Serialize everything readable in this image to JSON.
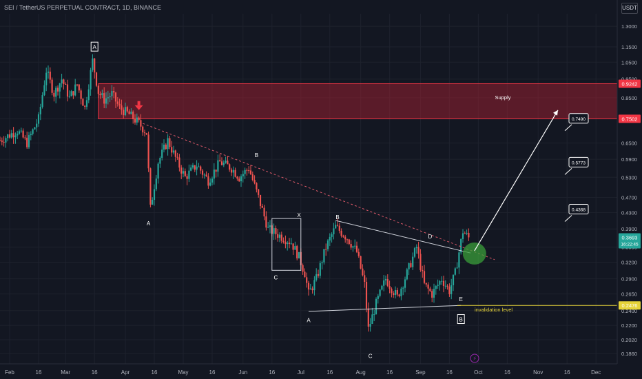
{
  "header": {
    "symbol_title": "SEI / TetherUS PERPETUAL CONTRACT, 1D, BINANCE",
    "currency": "USDT"
  },
  "colors": {
    "background": "#131722",
    "bull": "#26a69a",
    "bear": "#ef5350",
    "supply_fill": "rgba(178,34,52,0.45)",
    "supply_border": "#f23645",
    "invalidation_line": "#e6d33a",
    "target_circle": "#3a9d3a",
    "dashed_trend": "#e05a6a"
  },
  "chart_data": {
    "type": "candlestick",
    "x_axis": {
      "tick_labels": [
        "Feb",
        "16",
        "Mar",
        "16",
        "Apr",
        "16",
        "May",
        "16",
        "Jun",
        "16",
        "Jul",
        "16",
        "Aug",
        "16",
        "Sep",
        "16",
        "Oct",
        "16",
        "Nov",
        "16",
        "Dec"
      ],
      "range": [
        "2024-01-27",
        "2024-12-12"
      ]
    },
    "y_axis": {
      "scale": "log",
      "tick_labels": [
        "1.3000",
        "1.1500",
        "1.0500",
        "0.9500",
        "0.8500",
        "0.7500",
        "0.6500",
        "0.5900",
        "0.5300",
        "0.4700",
        "0.4300",
        "0.3900",
        "0.3500",
        "0.3200",
        "0.2900",
        "0.2650",
        "0.2400",
        "0.2200",
        "0.2020",
        "0.1860"
      ],
      "range": [
        0.175,
        1.4
      ]
    },
    "price_path": [
      [
        "2024-01-27",
        0.66
      ],
      [
        "2024-02-05",
        0.7
      ],
      [
        "2024-02-10",
        0.65
      ],
      [
        "2024-02-16",
        0.75
      ],
      [
        "2024-02-20",
        1.0
      ],
      [
        "2024-02-24",
        0.87
      ],
      [
        "2024-02-28",
        0.95
      ],
      [
        "2024-03-03",
        0.85
      ],
      [
        "2024-03-07",
        0.92
      ],
      [
        "2024-03-11",
        0.8
      ],
      [
        "2024-03-15",
        1.06
      ],
      [
        "2024-03-18",
        0.88
      ],
      [
        "2024-03-21",
        0.84
      ],
      [
        "2024-03-25",
        0.87
      ],
      [
        "2024-03-29",
        0.8
      ],
      [
        "2024-04-03",
        0.77
      ],
      [
        "2024-04-08",
        0.73
      ],
      [
        "2024-04-12",
        0.69
      ],
      [
        "2024-04-14",
        0.44
      ],
      [
        "2024-04-18",
        0.58
      ],
      [
        "2024-04-23",
        0.66
      ],
      [
        "2024-04-28",
        0.58
      ],
      [
        "2024-05-02",
        0.53
      ],
      [
        "2024-05-08",
        0.57
      ],
      [
        "2024-05-14",
        0.52
      ],
      [
        "2024-05-20",
        0.58
      ],
      [
        "2024-05-26",
        0.56
      ],
      [
        "2024-05-30",
        0.53
      ],
      [
        "2024-06-04",
        0.56
      ],
      [
        "2024-06-09",
        0.47
      ],
      [
        "2024-06-14",
        0.39
      ],
      [
        "2024-06-18",
        0.38
      ],
      [
        "2024-06-22",
        0.37
      ],
      [
        "2024-06-26",
        0.36
      ],
      [
        "2024-06-30",
        0.33
      ],
      [
        "2024-07-03",
        0.3
      ],
      [
        "2024-07-05",
        0.265
      ],
      [
        "2024-07-09",
        0.29
      ],
      [
        "2024-07-14",
        0.35
      ],
      [
        "2024-07-19",
        0.395
      ],
      [
        "2024-07-25",
        0.37
      ],
      [
        "2024-07-30",
        0.34
      ],
      [
        "2024-08-03",
        0.28
      ],
      [
        "2024-08-05",
        0.215
      ],
      [
        "2024-08-09",
        0.25
      ],
      [
        "2024-08-14",
        0.29
      ],
      [
        "2024-08-20",
        0.26
      ],
      [
        "2024-08-25",
        0.3
      ],
      [
        "2024-08-30",
        0.35
      ],
      [
        "2024-09-03",
        0.28
      ],
      [
        "2024-09-07",
        0.265
      ],
      [
        "2024-09-12",
        0.29
      ],
      [
        "2024-09-16",
        0.27
      ],
      [
        "2024-09-19",
        0.3
      ],
      [
        "2024-09-23",
        0.385
      ],
      [
        "2024-09-26",
        0.37
      ]
    ],
    "last_price": "0.3693",
    "countdown": "16:22:45",
    "price_levels": [
      {
        "label": "0.9242",
        "value": 0.9242,
        "color": "#f23645"
      },
      {
        "label": "0.7502",
        "value": 0.7502,
        "color": "#f23645"
      },
      {
        "label": "0.2476",
        "value": 0.2476,
        "color": "#e6d33a"
      }
    ],
    "supply_zone": {
      "label": "Supply",
      "from": 0.7502,
      "to": 0.9242,
      "start": "2024-03-18"
    },
    "invalidation": {
      "label": "invalidation level",
      "value": 0.2476
    },
    "targets": [
      "0.7490",
      "0.5773",
      "0.4368"
    ],
    "wave_labels": [
      {
        "text": "A",
        "date": "2024-03-16",
        "value": 1.14,
        "boxed": true
      },
      {
        "text": "A",
        "date": "2024-04-13",
        "value": 0.4
      },
      {
        "text": "B",
        "date": "2024-06-08",
        "value": 0.6
      },
      {
        "text": "X",
        "date": "2024-06-30",
        "value": 0.42
      },
      {
        "text": "C",
        "date": "2024-06-18",
        "value": 0.29
      },
      {
        "text": "A",
        "date": "2024-07-05",
        "value": 0.225
      },
      {
        "text": "B",
        "date": "2024-07-20",
        "value": 0.415
      },
      {
        "text": "C",
        "date": "2024-08-06",
        "value": 0.182
      },
      {
        "text": "D",
        "date": "2024-09-06",
        "value": 0.37
      },
      {
        "text": "E",
        "date": "2024-09-22",
        "value": 0.255
      },
      {
        "text": "B",
        "date": "2024-09-22",
        "value": 0.226,
        "boxed": true
      }
    ]
  }
}
